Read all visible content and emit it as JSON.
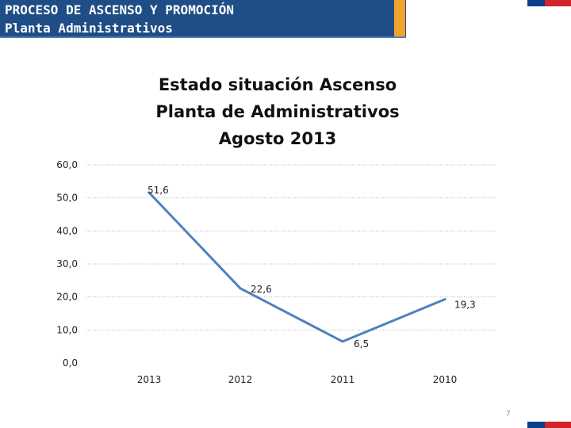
{
  "header": {
    "title_line1": "PROCESO DE ASCENSO Y PROMOCIÓN",
    "title_line2": "Planta Administrativos"
  },
  "colors": {
    "header_bg": "#1f4e86",
    "accent": "#f0a22a",
    "line": "#4f81bd",
    "flag_blue": "#0b3f8a",
    "flag_red": "#d1232a"
  },
  "chart_data": {
    "type": "line",
    "title_lines": [
      "Estado situación Ascenso",
      "Planta de Administrativos",
      "Agosto 2013"
    ],
    "categories": [
      "2013",
      "2012",
      "2011",
      "2010"
    ],
    "values": [
      51.6,
      22.6,
      6.5,
      19.3
    ],
    "value_labels": [
      "51,6",
      "22,6",
      "6,5",
      "19,3"
    ],
    "y_ticks": [
      0,
      10,
      20,
      30,
      40,
      50,
      60
    ],
    "y_tick_labels": [
      "0,0",
      "10,0",
      "20,0",
      "30,0",
      "40,0",
      "50,0",
      "60,0"
    ],
    "ylim": [
      0,
      60
    ],
    "grid": true,
    "xlabel": "",
    "ylabel": ""
  },
  "page_number": "7"
}
